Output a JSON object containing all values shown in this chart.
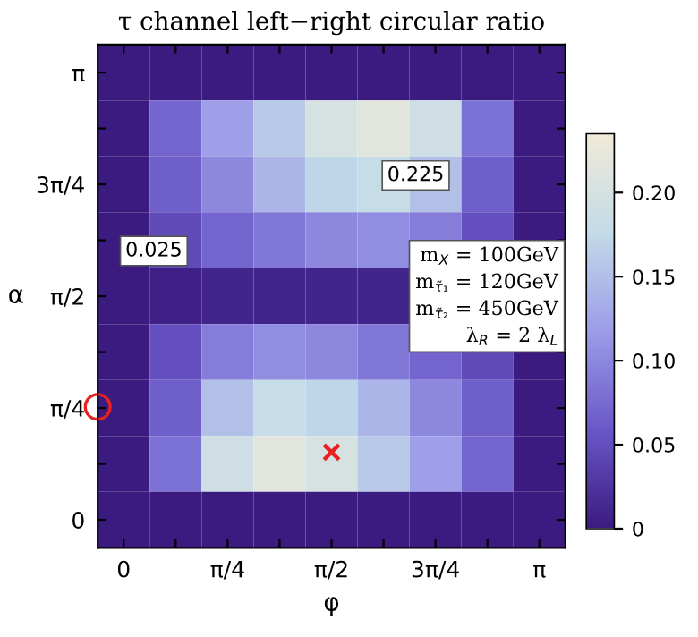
{
  "chart_data": {
    "type": "heatmap",
    "title": "τ channel left−right circular ratio",
    "xlabel": "φ",
    "ylabel": "α",
    "categories": [
      "0",
      null,
      "π/4",
      null,
      "π/2",
      null,
      "3π/4",
      null,
      "π"
    ],
    "y_categories": [
      "π",
      null,
      "3π/4",
      null,
      "π/2",
      null,
      "π/4",
      null,
      "0"
    ],
    "cells": [
      [
        0,
        0,
        0,
        0,
        0,
        0,
        0,
        0,
        0
      ],
      [
        0,
        0.07,
        0.12,
        0.16,
        0.2,
        0.215,
        0.19,
        0.08,
        0
      ],
      [
        0,
        0.065,
        0.1,
        0.14,
        0.17,
        0.18,
        0.15,
        0.065,
        0
      ],
      [
        0,
        0.045,
        0.07,
        0.085,
        0.1,
        0.105,
        0.09,
        0.05,
        0
      ],
      [
        0,
        0.005,
        0.01,
        0.01,
        0.01,
        0.01,
        null,
        null,
        null
      ],
      [
        0,
        0.05,
        0.09,
        0.105,
        0.1,
        0.085,
        0.07,
        0.045,
        0
      ],
      [
        0,
        0.065,
        0.15,
        0.18,
        0.17,
        0.14,
        0.1,
        0.065,
        0
      ],
      [
        0,
        0.08,
        0.19,
        0.215,
        0.2,
        0.16,
        0.12,
        0.07,
        0
      ],
      [
        0,
        0,
        0,
        0,
        0,
        0,
        0,
        0,
        0
      ]
    ],
    "clim": [
      0,
      0.235
    ],
    "cticks": [
      0,
      0.05,
      {
        "value": 0.1,
        "label": "0.10"
      },
      0.15,
      {
        "value": 0.2,
        "label": "0.20"
      }
    ],
    "annotations": [
      "0.225",
      "0.025",
      "m$_{X}$ = 100GeV\nm$_{τ̃₁}$ = 120GeV\nm$_{τ̃₂}$ = 450GeV\nλ$_{R}$ = 2 λ$_{L}$"
    ],
    "grid": false
  }
}
